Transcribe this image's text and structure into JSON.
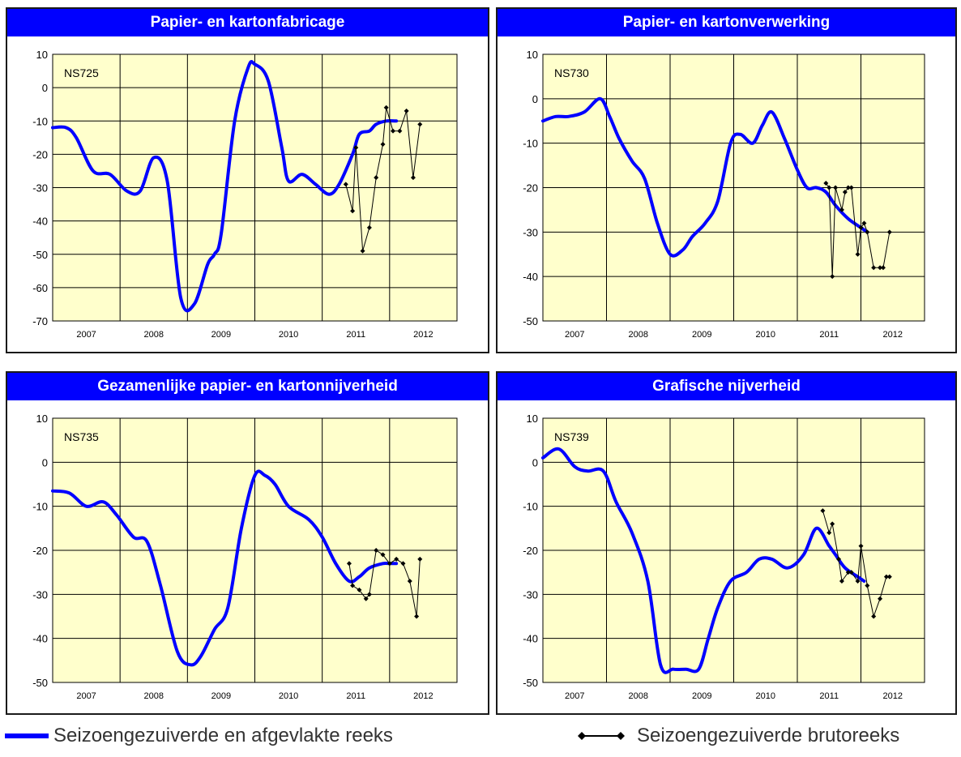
{
  "colors": {
    "plot_bg": "#ffffcc",
    "smooth_line": "#0000ff",
    "raw_line": "#000000",
    "title_bg": "#0000ff",
    "title_text": "#ffffff"
  },
  "legend": {
    "smooth_label": "Seizoengezuiverde en afgevlakte reeks",
    "raw_label": "Seizoengezuiverde brutoreeks"
  },
  "chart_data": [
    {
      "type": "line",
      "title": "Papier- en kartonfabricage",
      "series_code": "NS725",
      "x_ticks": [
        "2007",
        "2008",
        "2009",
        "2010",
        "2011",
        "2012"
      ],
      "ylim": [
        -70,
        10
      ],
      "y_ticks": [
        10,
        0,
        -10,
        -20,
        -30,
        -40,
        -50,
        -60,
        -70
      ],
      "grid": true,
      "series": [
        {
          "style": "smooth",
          "x": [
            2006.5,
            2006.7,
            2006.85,
            2007.1,
            2007.35,
            2007.6,
            2007.8,
            2008.0,
            2008.2,
            2008.4,
            2008.6,
            2008.8,
            2008.9,
            2009.0,
            2009.2,
            2009.4,
            2009.5,
            2009.7,
            2009.9,
            2010.0,
            2010.2,
            2010.4,
            2010.6,
            2010.75,
            2010.95,
            2011.05,
            2011.2,
            2011.3,
            2011.45,
            2011.6
          ],
          "y": [
            -12,
            -12,
            -15,
            -25,
            -26,
            -31,
            -31,
            -21,
            -28,
            -63,
            -65,
            -53,
            -50,
            -44,
            -10,
            6,
            7,
            2,
            -18,
            -28,
            -26,
            -29,
            -32,
            -29,
            -20,
            -14,
            -13,
            -11,
            -10,
            -10
          ]
        },
        {
          "style": "raw",
          "x": [
            2010.85,
            2010.95,
            2011.0,
            2011.1,
            2011.2,
            2011.3,
            2011.4,
            2011.45,
            2011.55,
            2011.65,
            2011.75,
            2011.85,
            2011.95
          ],
          "y": [
            -29,
            -37,
            -18,
            -49,
            -42,
            -27,
            -17,
            -6,
            -13,
            -13,
            -7,
            -27,
            -11
          ]
        }
      ]
    },
    {
      "type": "line",
      "title": "Papier- en kartonverwerking",
      "series_code": "NS730",
      "x_ticks": [
        "2007",
        "2008",
        "2009",
        "2010",
        "2011",
        "2012"
      ],
      "ylim": [
        -50,
        10
      ],
      "y_ticks": [
        10,
        0,
        -10,
        -20,
        -30,
        -40,
        -50
      ],
      "grid": true,
      "series": [
        {
          "style": "smooth",
          "x": [
            2006.5,
            2006.7,
            2006.9,
            2007.15,
            2007.4,
            2007.55,
            2007.7,
            2007.9,
            2008.1,
            2008.3,
            2008.5,
            2008.7,
            2008.85,
            2009.05,
            2009.25,
            2009.45,
            2009.6,
            2009.8,
            2009.95,
            2010.1,
            2010.3,
            2010.5,
            2010.65,
            2010.8,
            2010.95,
            2011.1,
            2011.3,
            2011.5,
            2011.6
          ],
          "y": [
            -5,
            -4,
            -4,
            -3,
            0,
            -4,
            -9,
            -14,
            -18,
            -28,
            -35,
            -34,
            -31,
            -28,
            -23,
            -10,
            -8,
            -10,
            -6,
            -3,
            -9,
            -16,
            -20,
            -20,
            -21,
            -24,
            -27,
            -29,
            -30
          ]
        },
        {
          "style": "raw",
          "x": [
            2010.95,
            2011.0,
            2011.05,
            2011.1,
            2011.2,
            2011.25,
            2011.3,
            2011.35,
            2011.45,
            2011.5,
            2011.55,
            2011.6,
            2011.7,
            2011.8,
            2011.85,
            2011.95
          ],
          "y": [
            -19,
            -20,
            -40,
            -20,
            -25,
            -21,
            -20,
            -20,
            -35,
            -29,
            -28,
            -30,
            -38,
            -38,
            -38,
            -30
          ]
        }
      ]
    },
    {
      "type": "line",
      "title": "Gezamenlijke papier- en kartonnijverheid",
      "series_code": "NS735",
      "x_ticks": [
        "2007",
        "2008",
        "2009",
        "2010",
        "2011",
        "2012"
      ],
      "ylim": [
        -50,
        10
      ],
      "y_ticks": [
        10,
        0,
        -10,
        -20,
        -30,
        -40,
        -50
      ],
      "grid": true,
      "series": [
        {
          "style": "smooth",
          "x": [
            2006.5,
            2006.75,
            2007.0,
            2007.25,
            2007.45,
            2007.7,
            2007.9,
            2008.1,
            2008.35,
            2008.55,
            2008.7,
            2008.9,
            2009.1,
            2009.3,
            2009.5,
            2009.65,
            2009.8,
            2010.0,
            2010.3,
            2010.5,
            2010.7,
            2010.9,
            2011.05,
            2011.2,
            2011.4,
            2011.5,
            2011.6
          ],
          "y": [
            -6.5,
            -7,
            -10,
            -9,
            -12,
            -17,
            -18,
            -28,
            -43,
            -46,
            -44,
            -38,
            -33,
            -15,
            -3,
            -3,
            -5,
            -10,
            -13,
            -17,
            -23,
            -27,
            -26,
            -24,
            -23,
            -23,
            -23
          ]
        },
        {
          "style": "raw",
          "x": [
            2010.9,
            2010.95,
            2011.05,
            2011.15,
            2011.2,
            2011.3,
            2011.4,
            2011.5,
            2011.6,
            2011.7,
            2011.8,
            2011.9,
            2011.95
          ],
          "y": [
            -23,
            -28,
            -29,
            -31,
            -30,
            -20,
            -21,
            -23,
            -22,
            -23,
            -27,
            -35,
            -22
          ]
        }
      ]
    },
    {
      "type": "line",
      "title": "Grafische nijverheid",
      "series_code": "NS739",
      "x_ticks": [
        "2007",
        "2008",
        "2009",
        "2010",
        "2011",
        "2012"
      ],
      "ylim": [
        -50,
        10
      ],
      "y_ticks": [
        10,
        0,
        -10,
        -20,
        -30,
        -40,
        -50
      ],
      "grid": true,
      "series": [
        {
          "style": "smooth",
          "x": [
            2006.5,
            2006.75,
            2007.0,
            2007.2,
            2007.45,
            2007.65,
            2007.9,
            2008.15,
            2008.35,
            2008.55,
            2008.75,
            2008.95,
            2009.1,
            2009.25,
            2009.45,
            2009.7,
            2009.9,
            2010.1,
            2010.35,
            2010.6,
            2010.8,
            2011.0,
            2011.1,
            2011.25,
            2011.45,
            2011.55
          ],
          "y": [
            1,
            3,
            -1,
            -2,
            -2,
            -9,
            -16,
            -27,
            -46,
            -47,
            -47,
            -47,
            -40,
            -33,
            -27,
            -25,
            -22,
            -22,
            -24,
            -21,
            -15,
            -19,
            -21,
            -24,
            -26,
            -27
          ]
        },
        {
          "style": "raw",
          "x": [
            2010.9,
            2011.0,
            2011.05,
            2011.15,
            2011.2,
            2011.3,
            2011.35,
            2011.45,
            2011.5,
            2011.6,
            2011.7,
            2011.8,
            2011.9,
            2011.95
          ],
          "y": [
            -11,
            -16,
            -14,
            -22,
            -27,
            -25,
            -25,
            -27,
            -19,
            -28,
            -35,
            -31,
            -26,
            -26
          ]
        }
      ]
    }
  ]
}
